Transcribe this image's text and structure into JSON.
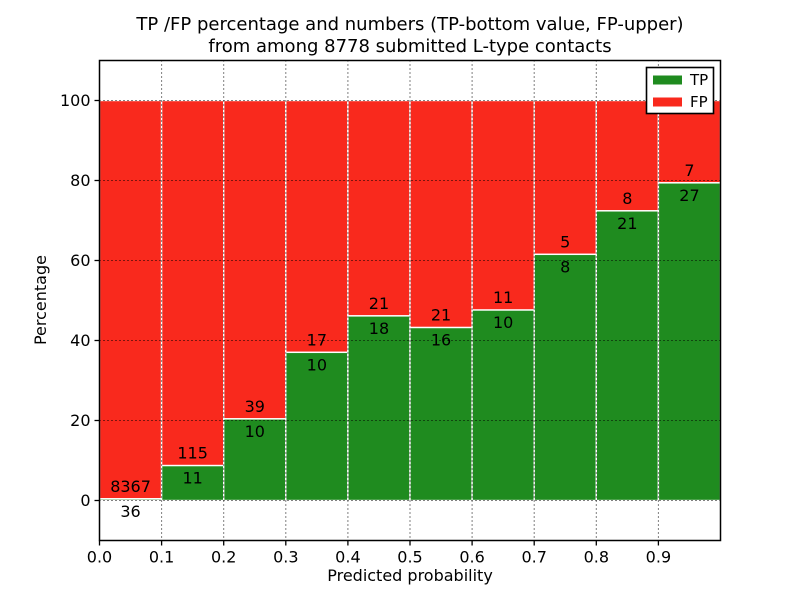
{
  "chart_data": {
    "type": "bar",
    "stacked": true,
    "title_line1": "TP /FP percentage and numbers (TP-bottom value, FP-upper)",
    "title_line2": "from among 8778 submitted L-type contacts",
    "xlabel": "Predicted probability",
    "ylabel": "Percentage",
    "x_tick_labels": [
      "0.0",
      "0.1",
      "0.2",
      "0.3",
      "0.4",
      "0.5",
      "0.6",
      "0.7",
      "0.8",
      "0.9"
    ],
    "y_tick_values": [
      0,
      20,
      40,
      60,
      80,
      100
    ],
    "xlim": [
      0.0,
      1.0
    ],
    "ylim": [
      -10,
      110
    ],
    "bin_width": 0.1,
    "total_contacts": 8778,
    "grid": true,
    "series": [
      {
        "name": "TP",
        "color": "#1f8b1f",
        "counts": [
          36,
          11,
          10,
          10,
          18,
          16,
          10,
          8,
          21,
          27
        ]
      },
      {
        "name": "FP",
        "color": "#f9291d",
        "counts": [
          8367,
          115,
          39,
          17,
          21,
          21,
          11,
          5,
          8,
          7
        ]
      }
    ],
    "legend": {
      "position": "upper right"
    },
    "bar_edge_color": "#ffffff",
    "background_color": "#ffffff"
  }
}
